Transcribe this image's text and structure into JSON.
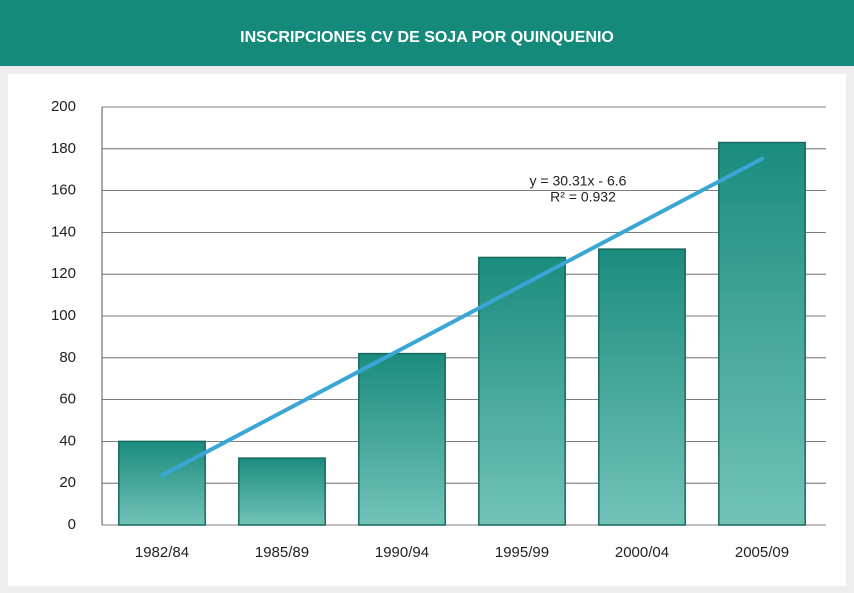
{
  "chart_data": {
    "type": "bar",
    "title": "INSCRIPCIONES CV DE SOJA POR QUINQUENIO",
    "categories": [
      "1982/84",
      "1985/89",
      "1990/94",
      "1995/99",
      "2000/04",
      "2005/09"
    ],
    "values": [
      40,
      32,
      82,
      128,
      132,
      183
    ],
    "color": "#1b8c7e",
    "ylim": [
      0,
      200
    ],
    "yticks": [
      0,
      20,
      40,
      60,
      80,
      100,
      120,
      140,
      160,
      180,
      200
    ],
    "grid": true,
    "trendline": {
      "slope": 30.31,
      "intercept": -6.6,
      "color": "#3aa6d6",
      "equation": "y = 30.31x - 6.6",
      "r2": "R² = 0.932"
    }
  }
}
